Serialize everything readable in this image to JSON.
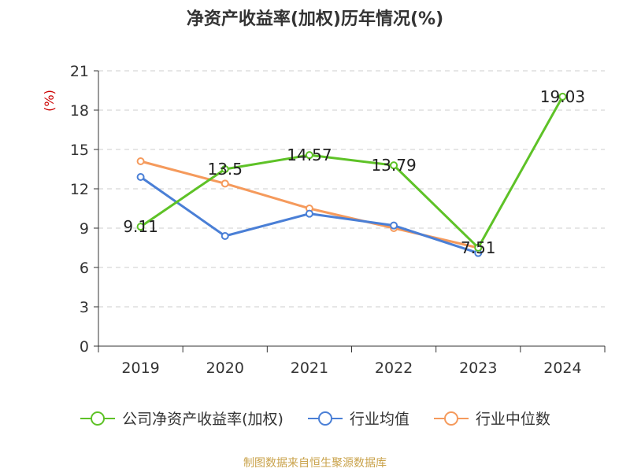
{
  "chart_data": {
    "type": "line",
    "title": "净资产收益率(加权)历年情况(%)",
    "ylabel": "(%)",
    "categories": [
      "2019",
      "2020",
      "2021",
      "2022",
      "2023",
      "2024"
    ],
    "ylim": [
      0,
      21
    ],
    "yticks": [
      0,
      3,
      6,
      9,
      12,
      15,
      18,
      21
    ],
    "grid": true,
    "legend_position": "bottom",
    "series": [
      {
        "name": "公司净资产收益率(加权)",
        "color": "#5ec227",
        "values": [
          9.11,
          13.5,
          14.57,
          13.79,
          7.51,
          19.03
        ],
        "labels": [
          "9.11",
          "13.5",
          "14.57",
          "13.79",
          "7.51",
          "19.03"
        ]
      },
      {
        "name": "行业均值",
        "color": "#4a7fd6",
        "values": [
          12.9,
          8.4,
          10.1,
          9.2,
          7.1,
          null
        ]
      },
      {
        "name": "行业中位数",
        "color": "#f59a5c",
        "values": [
          14.1,
          12.4,
          10.5,
          9.0,
          7.5,
          null
        ]
      }
    ]
  },
  "source_note": "制图数据来自恒生聚源数据库"
}
